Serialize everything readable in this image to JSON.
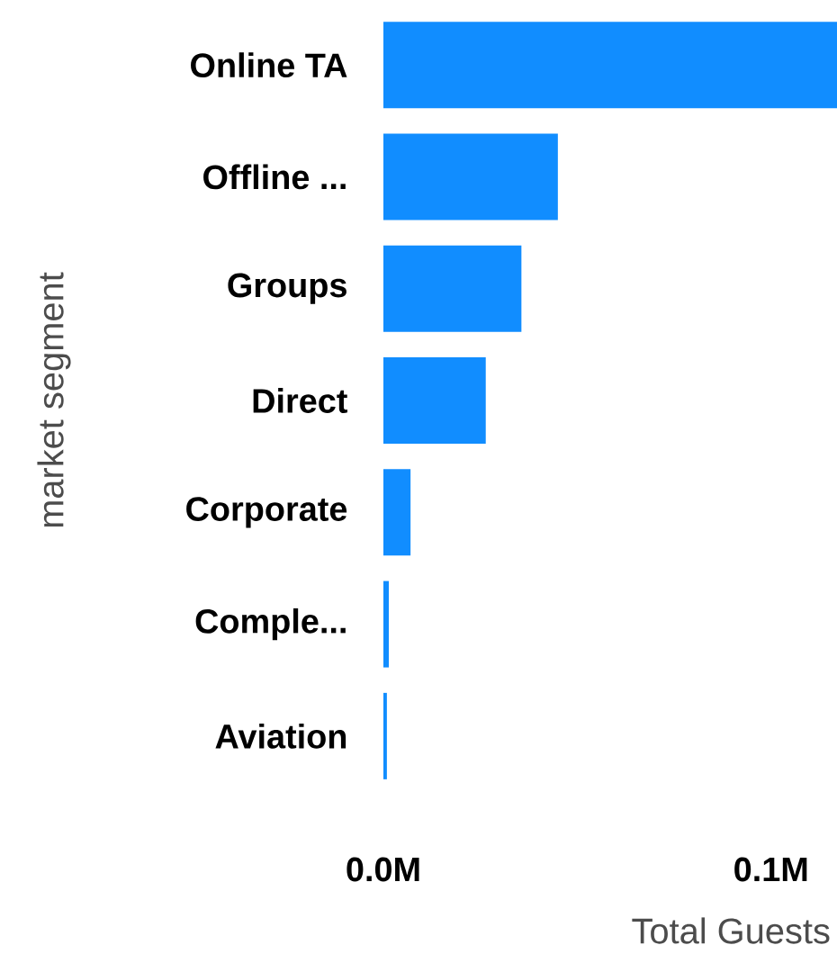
{
  "chart_data": {
    "type": "bar",
    "orientation": "horizontal",
    "xlabel": "Total Guests",
    "ylabel": "market segment",
    "categories": [
      "Online TA",
      "Offline ...",
      "Groups",
      "Direct",
      "Corporate",
      "Comple...",
      "Aviation"
    ],
    "values": [
      117000,
      45000,
      35600,
      26400,
      7000,
      1400,
      900
    ],
    "color": "#118dff",
    "xlim": [
      0,
      117000
    ],
    "xticks": [
      {
        "value": 0,
        "label": "0.0M"
      },
      {
        "value": 100000,
        "label": "0.1M"
      }
    ],
    "grid": false
  }
}
